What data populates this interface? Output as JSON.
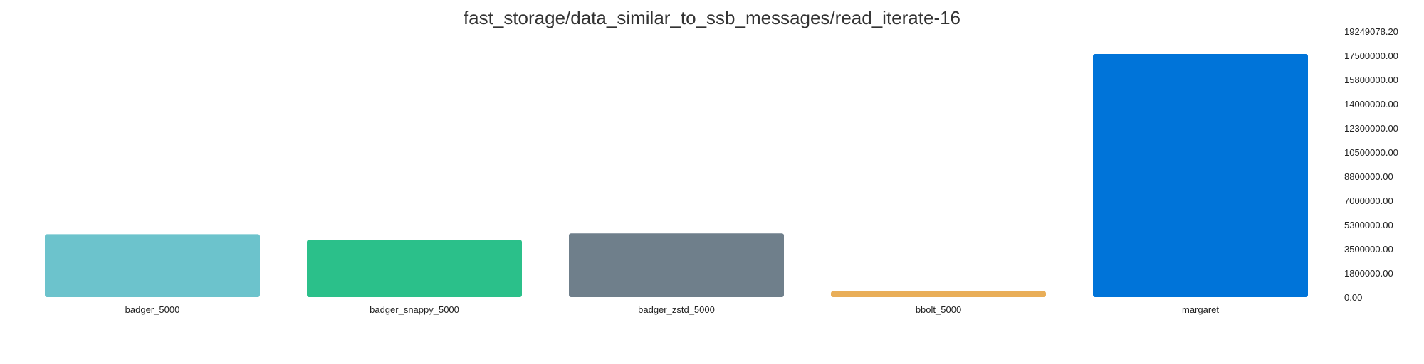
{
  "chart_data": {
    "type": "bar",
    "title": "fast_storage/data_similar_to_ssb_messages/read_iterate-16",
    "categories": [
      "badger_5000",
      "badger_snappy_5000",
      "badger_zstd_5000",
      "bbolt_5000",
      "margaret"
    ],
    "values": [
      4560000,
      4150000,
      4620000,
      430000,
      17600000
    ],
    "colors": [
      "#6cc3cc",
      "#2bc08a",
      "#6f7f8b",
      "#e9ae58",
      "#0074d9"
    ],
    "ylim": [
      0,
      19249078.2
    ],
    "yticks": [
      "0.00",
      "1800000.00",
      "3500000.00",
      "5300000.00",
      "7000000.00",
      "8800000.00",
      "10500000.00",
      "12300000.00",
      "14000000.00",
      "15800000.00",
      "17500000.00",
      "19249078.20"
    ],
    "xlabel": "",
    "ylabel": "",
    "grid": false,
    "axis_side": "right"
  }
}
